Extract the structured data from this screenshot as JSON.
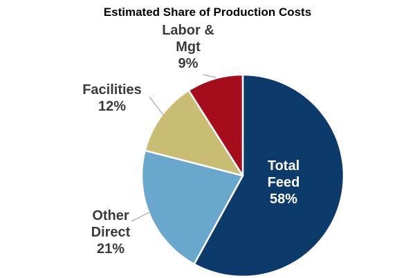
{
  "chart_data": {
    "type": "pie",
    "title": "Estimated Share of Production Costs",
    "unit": "%",
    "slices": [
      {
        "id": "feed",
        "label_lines": [
          "Total",
          "Feed"
        ],
        "value": 58,
        "value_label": "58%",
        "color": "#0b3a6b"
      },
      {
        "id": "other",
        "label_lines": [
          "Other",
          "Direct"
        ],
        "value": 21,
        "value_label": "21%",
        "color": "#6aa7cc"
      },
      {
        "id": "facilities",
        "label_lines": [
          "Facilities"
        ],
        "value": 12,
        "value_label": "12%",
        "color": "#c9bd74"
      },
      {
        "id": "labor",
        "label_lines": [
          "Labor &",
          "Mgt"
        ],
        "value": 9,
        "value_label": "9%",
        "color": "#a50d1c"
      }
    ]
  }
}
